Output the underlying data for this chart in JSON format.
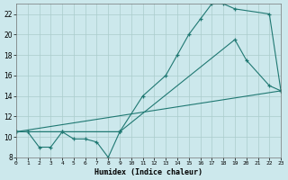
{
  "bg_color": "#cce8ec",
  "grid_color": "#aacccc",
  "line_color": "#1f7872",
  "xlabel": "Humidex (Indice chaleur)",
  "xlim": [
    0,
    23
  ],
  "ylim": [
    8,
    23
  ],
  "xticks": [
    0,
    1,
    2,
    3,
    4,
    5,
    6,
    7,
    8,
    9,
    10,
    11,
    12,
    13,
    14,
    15,
    16,
    17,
    18,
    19,
    20,
    21,
    22,
    23
  ],
  "yticks": [
    8,
    10,
    12,
    14,
    16,
    18,
    20,
    22
  ],
  "series": [
    {
      "x": [
        0,
        1,
        2,
        3,
        4,
        5,
        6,
        7,
        8,
        9
      ],
      "y": [
        10.5,
        10.5,
        9.0,
        9.0,
        10.5,
        9.8,
        9.8,
        9.5,
        8.0,
        10.5
      ],
      "marker": true
    },
    {
      "x": [
        0,
        1,
        4,
        9,
        11,
        13,
        14,
        15,
        16,
        17,
        18,
        19,
        22,
        23
      ],
      "y": [
        10.5,
        10.5,
        10.5,
        10.5,
        14.0,
        16.0,
        18.0,
        20.0,
        21.5,
        23.0,
        23.0,
        22.5,
        22.0,
        14.5
      ],
      "marker": true
    },
    {
      "x": [
        0,
        9,
        19,
        20,
        22,
        23
      ],
      "y": [
        10.5,
        10.5,
        19.5,
        17.5,
        15.0,
        14.5
      ],
      "marker": true
    },
    {
      "x": [
        0,
        23
      ],
      "y": [
        10.5,
        14.5
      ],
      "marker": false
    }
  ]
}
